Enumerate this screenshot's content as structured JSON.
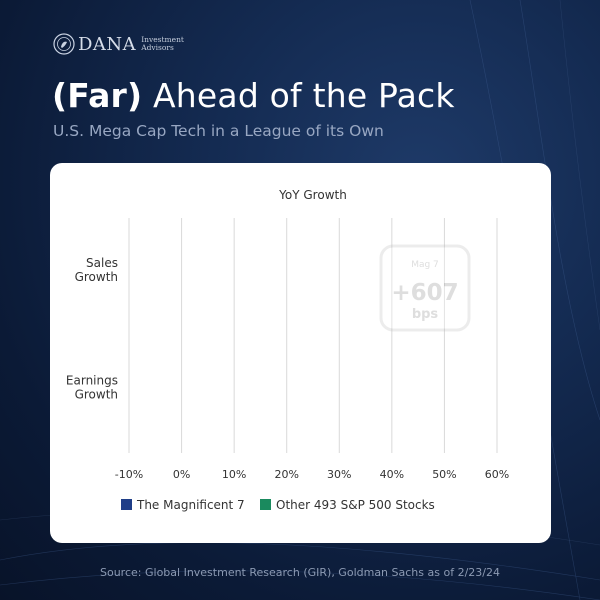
{
  "brand": {
    "name": "DANA",
    "tagline_line1": "Investment",
    "tagline_line2": "Advisors"
  },
  "header": {
    "title_bold": "(Far)",
    "title_rest": " Ahead of the Pack",
    "subtitle": "U.S. Mega Cap Tech in a League of its Own"
  },
  "chart_data": {
    "type": "bar",
    "orientation": "horizontal",
    "title": "YoY Growth",
    "categories": [
      "Sales Growth",
      "Earnings Growth"
    ],
    "category_lines": [
      [
        "Sales",
        "Growth"
      ],
      [
        "Earnings",
        "Growth"
      ]
    ],
    "x_ticks": [
      "-10%",
      "0%",
      "10%",
      "20%",
      "30%",
      "40%",
      "50%",
      "60%"
    ],
    "xlim": [
      -10,
      60
    ],
    "series": [
      {
        "name": "The Magnificent 7",
        "color": "#1f3e88",
        "values": [
          null,
          null
        ]
      },
      {
        "name": "Other 493 S&P 500 Stocks",
        "color": "#1a8a5e",
        "values": [
          null,
          null
        ]
      }
    ],
    "annotation": {
      "label": "Mag 7",
      "value": "+607",
      "unit": "bps"
    },
    "legend_position": "bottom"
  },
  "footer": {
    "source": "Source: Global Investment Research (GIR), Goldman Sachs as of 2/23/24"
  }
}
